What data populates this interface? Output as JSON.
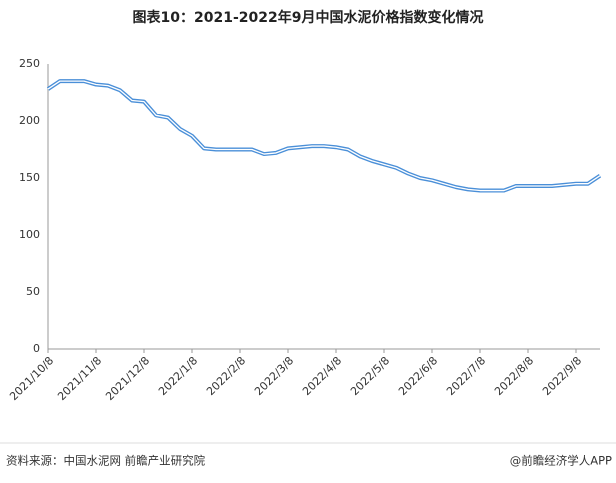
{
  "chart_data": {
    "type": "line",
    "title": "图表10：2021-2022年9月中国水泥价格指数变化情况",
    "source": "资料来源：中国水泥网 前瞻产业研究院",
    "credit": "@前瞻经济学人APP",
    "categories": [
      "2021/10/8",
      null,
      null,
      null,
      "2021/11/8",
      null,
      null,
      null,
      "2021/12/8",
      null,
      null,
      null,
      "2022/1/8",
      null,
      null,
      null,
      "2022/2/8",
      null,
      null,
      null,
      "2022/3/8",
      null,
      null,
      null,
      "2022/4/8",
      null,
      null,
      null,
      "2022/5/8",
      null,
      null,
      null,
      "2022/6/8",
      null,
      null,
      null,
      "2022/7/8",
      null,
      null,
      null,
      "2022/8/8",
      null,
      null,
      null,
      "2022/9/8",
      null,
      null
    ],
    "series": [
      {
        "color": "#4a8fd8",
        "values": [
          228,
          235,
          235,
          235,
          232,
          231,
          227,
          218,
          217,
          205,
          203,
          193,
          187,
          176,
          175,
          175,
          175,
          175,
          171,
          172,
          176,
          177,
          178,
          178,
          177,
          175,
          169,
          165,
          162,
          159,
          154,
          150,
          148,
          145,
          142,
          140,
          139,
          139,
          139,
          143,
          143,
          143,
          143,
          144,
          145,
          145,
          152
        ]
      }
    ],
    "ylim": [
      0,
      250
    ],
    "yticks": [
      0,
      50,
      100,
      150,
      200,
      250
    ]
  }
}
